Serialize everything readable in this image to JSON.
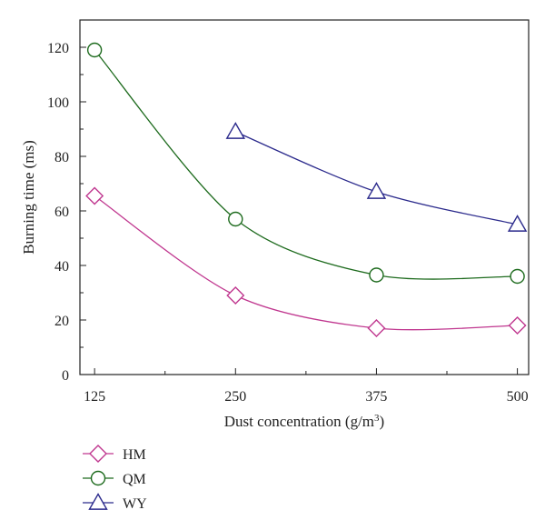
{
  "chart_data": {
    "type": "line",
    "xlabel": "Dust concentration (g/m",
    "xlabel_sup": "3",
    "xlabel_end": ")",
    "ylabel": "Burning time (ms)",
    "x_ticks": [
      125,
      250,
      375,
      500
    ],
    "y_ticks": [
      0,
      20,
      40,
      60,
      80,
      100,
      120
    ],
    "xlim": [
      112,
      510
    ],
    "ylim": [
      0,
      130
    ],
    "grid": false,
    "legend_position": "bottom-left, below plot",
    "series": [
      {
        "name": "HM",
        "marker": "diamond",
        "color": "#c0378f",
        "x": [
          125,
          250,
          375,
          500
        ],
        "y": [
          65.5,
          29,
          17,
          18
        ]
      },
      {
        "name": "QM",
        "marker": "circle",
        "color": "#1e6b1e",
        "x": [
          125,
          250,
          375,
          500
        ],
        "y": [
          119,
          57,
          36.5,
          36
        ]
      },
      {
        "name": "WY",
        "marker": "triangle",
        "color": "#2b2a8c",
        "x": [
          250,
          375,
          500
        ],
        "y": [
          89,
          67,
          55
        ]
      }
    ]
  }
}
